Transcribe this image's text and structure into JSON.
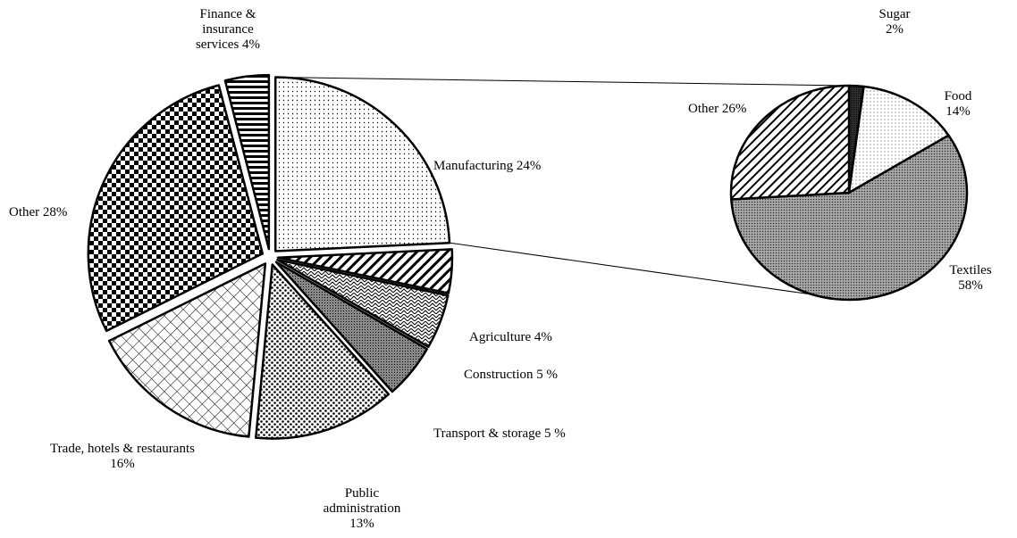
{
  "chart_data": [
    {
      "type": "pie",
      "color": "#000000",
      "categories": [
        "Manufacturing",
        "Agriculture",
        "Construction",
        "Transport & storage",
        "Public administration",
        "Trade, hotels & restaurants",
        "Other",
        "Finance & insurance services"
      ],
      "values": [
        24,
        4,
        5,
        5,
        13,
        16,
        28,
        4
      ],
      "value_labels": [
        "24%",
        "4%",
        "5 %",
        "5 %",
        "13%",
        "16%",
        "28%",
        "4%"
      ]
    },
    {
      "type": "pie",
      "color": "#000000",
      "categories": [
        "Sugar",
        "Food",
        "Textiles",
        "Other"
      ],
      "values": [
        2,
        14,
        58,
        26
      ],
      "value_labels": [
        "2%",
        "14%",
        "58%",
        "26%"
      ]
    }
  ]
}
